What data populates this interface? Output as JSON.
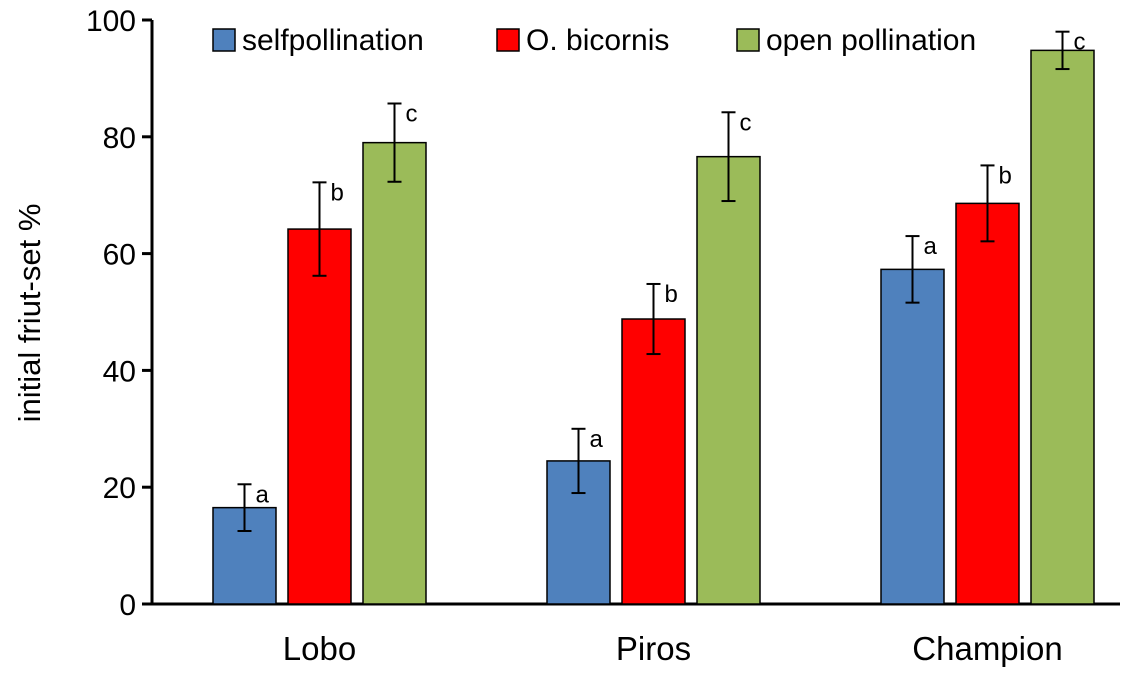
{
  "chart_data": {
    "type": "bar",
    "title": "",
    "xlabel": "",
    "ylabel": "initial friut-set   %",
    "ylim": [
      0,
      100
    ],
    "yticks": [
      0,
      20,
      40,
      60,
      80,
      100
    ],
    "grid": false,
    "legend_placement": "top",
    "categories": [
      "Lobo",
      "Piros",
      "Champion"
    ],
    "series": [
      {
        "name": "selfpollination",
        "color": "#4f81bd",
        "values": [
          16.5,
          24.5,
          57.3
        ],
        "errors": [
          4,
          5.5,
          5.7
        ],
        "labels": [
          "a",
          "a",
          "a"
        ]
      },
      {
        "name": "O. bicornis",
        "color": "#ff0000",
        "values": [
          64.2,
          48.8,
          68.6
        ],
        "errors": [
          8,
          6,
          6.5
        ],
        "labels": [
          "b",
          "b",
          "b"
        ]
      },
      {
        "name": "open pollination",
        "color": "#9bbb59",
        "values": [
          79,
          76.6,
          94.8
        ],
        "errors": [
          6.7,
          7.6,
          3.2
        ],
        "labels": [
          "c",
          "c",
          "c"
        ]
      }
    ]
  }
}
